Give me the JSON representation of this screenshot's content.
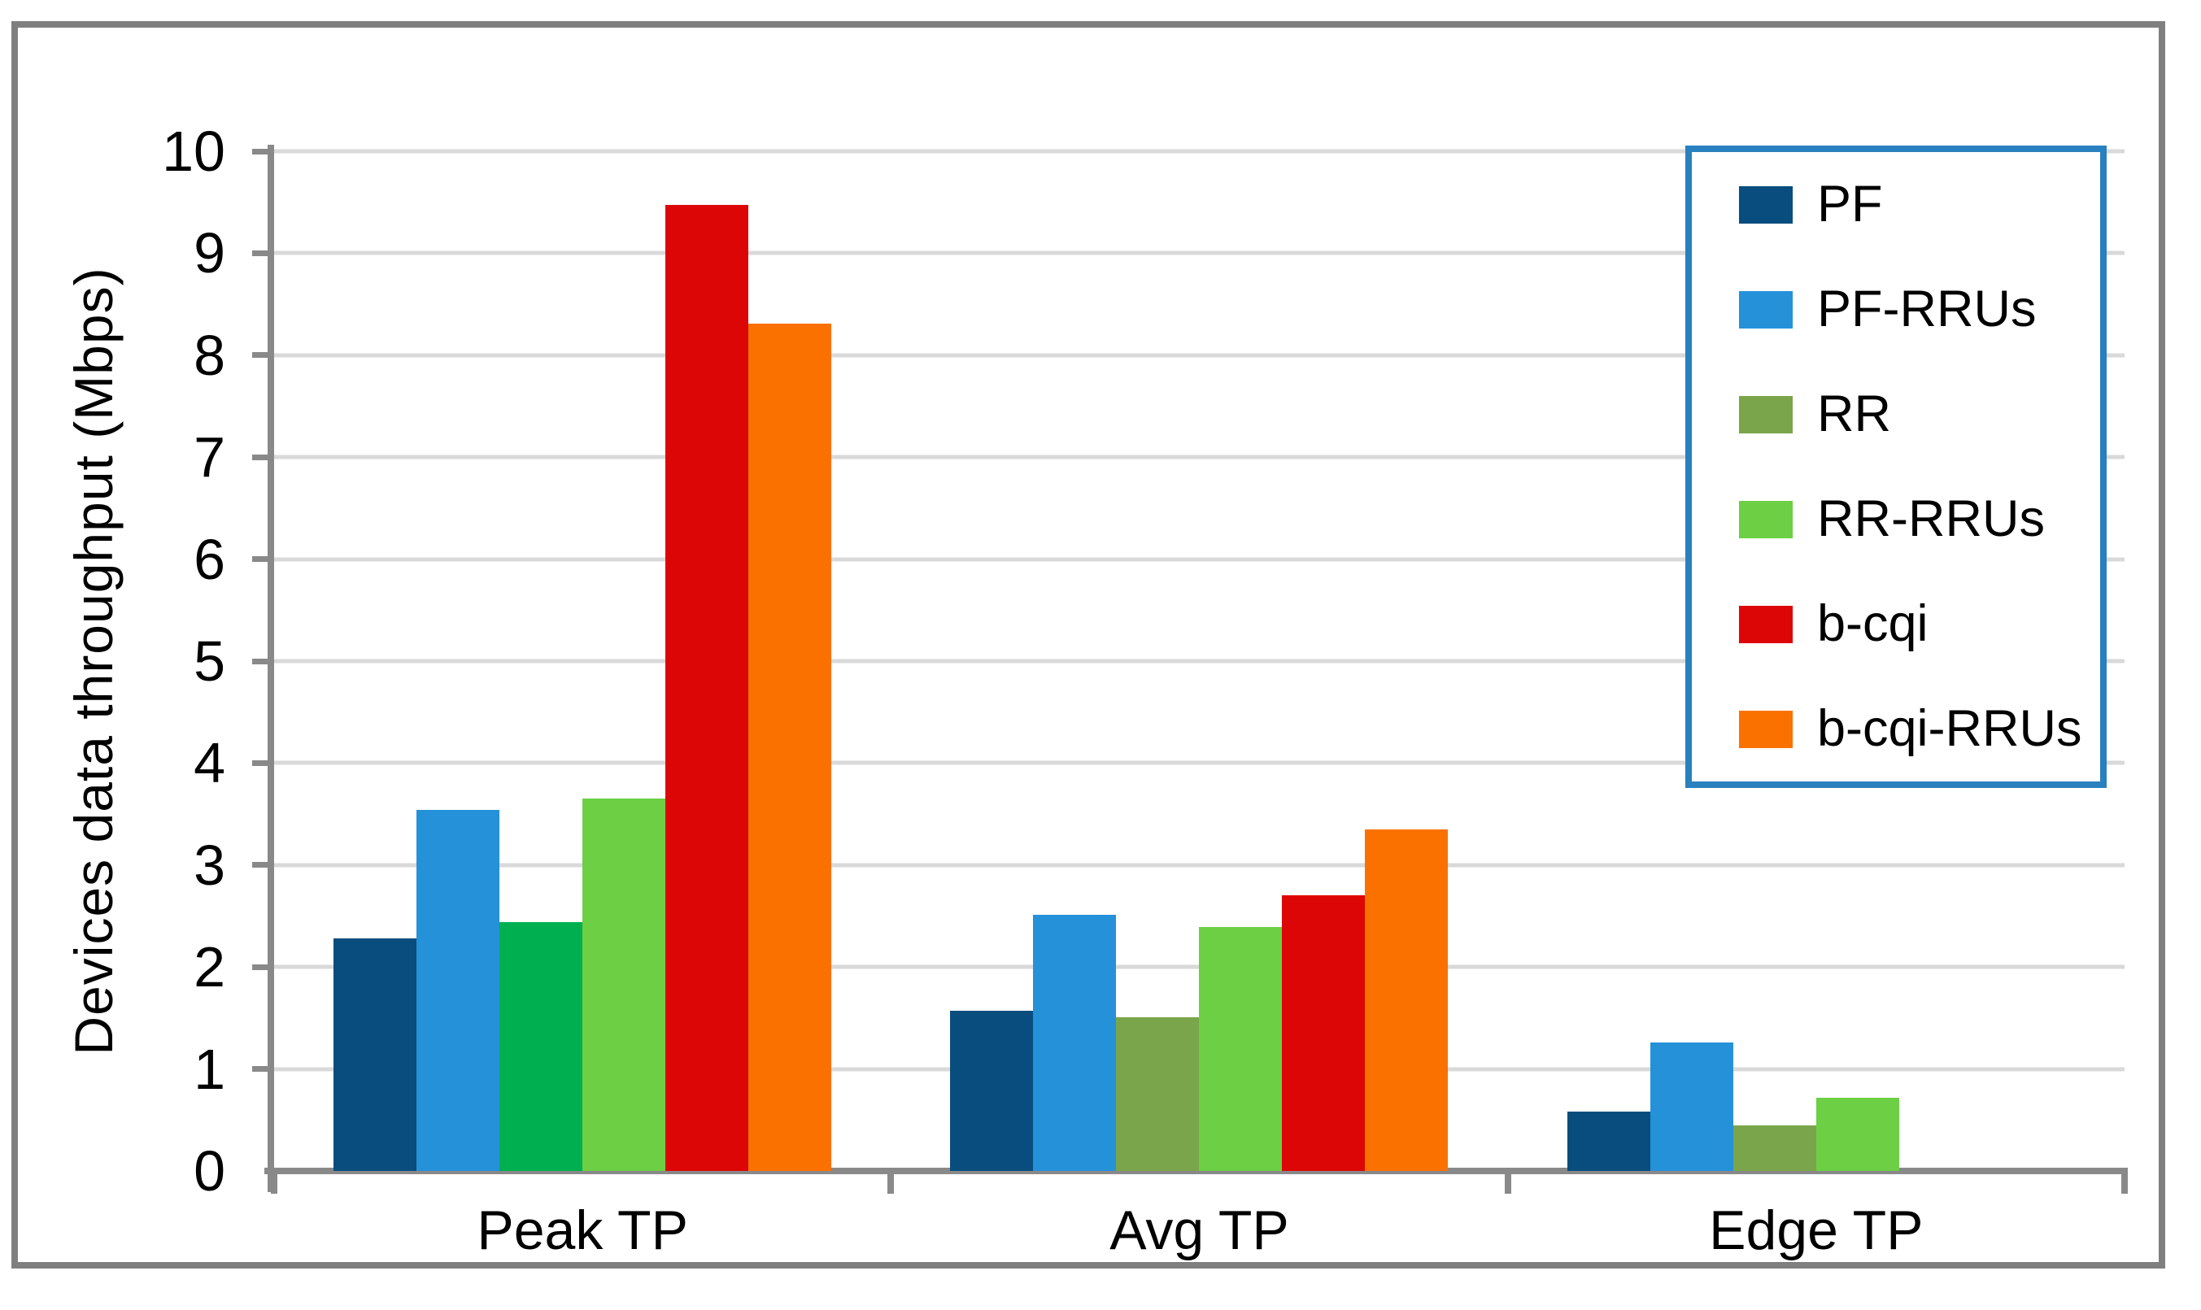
{
  "chart_data": {
    "type": "bar",
    "title": "",
    "ylabel": "Devices data throughput (Mbps)",
    "xlabel": "",
    "ylim": [
      0,
      10
    ],
    "ytick_step": 1,
    "yticks": [
      0,
      1,
      2,
      3,
      4,
      5,
      6,
      7,
      8,
      9,
      10
    ],
    "grid": true,
    "legend_position": "top-right",
    "categories": [
      "Peak TP",
      "Avg TP",
      "Edge TP"
    ],
    "series": [
      {
        "name": "PF",
        "color": "#084d7e",
        "values": [
          2.28,
          1.57,
          0.58
        ]
      },
      {
        "name": "PF-RRUs",
        "color": "#2591d9",
        "values": [
          3.54,
          2.51,
          1.26
        ]
      },
      {
        "name": "RR",
        "color": "#7aa54a",
        "values": [
          2.44,
          1.51,
          0.45
        ],
        "color_overrides": {
          "0": "#00b050"
        }
      },
      {
        "name": "RR-RRUs",
        "color": "#6ccf44",
        "values": [
          3.65,
          2.39,
          0.72
        ]
      },
      {
        "name": "b-cqi",
        "color": "#dd0606",
        "values": [
          9.47,
          2.7,
          0
        ]
      },
      {
        "name": "b-cqi-RRUs",
        "color": "#fb7100",
        "values": [
          8.31,
          3.35,
          0
        ]
      }
    ],
    "style_colors": {
      "axis": "#898989",
      "gridline": "#d9d9d9",
      "frame_border": "#7f7f7f",
      "legend_border": "#2980be",
      "background": "#ffffff"
    }
  }
}
